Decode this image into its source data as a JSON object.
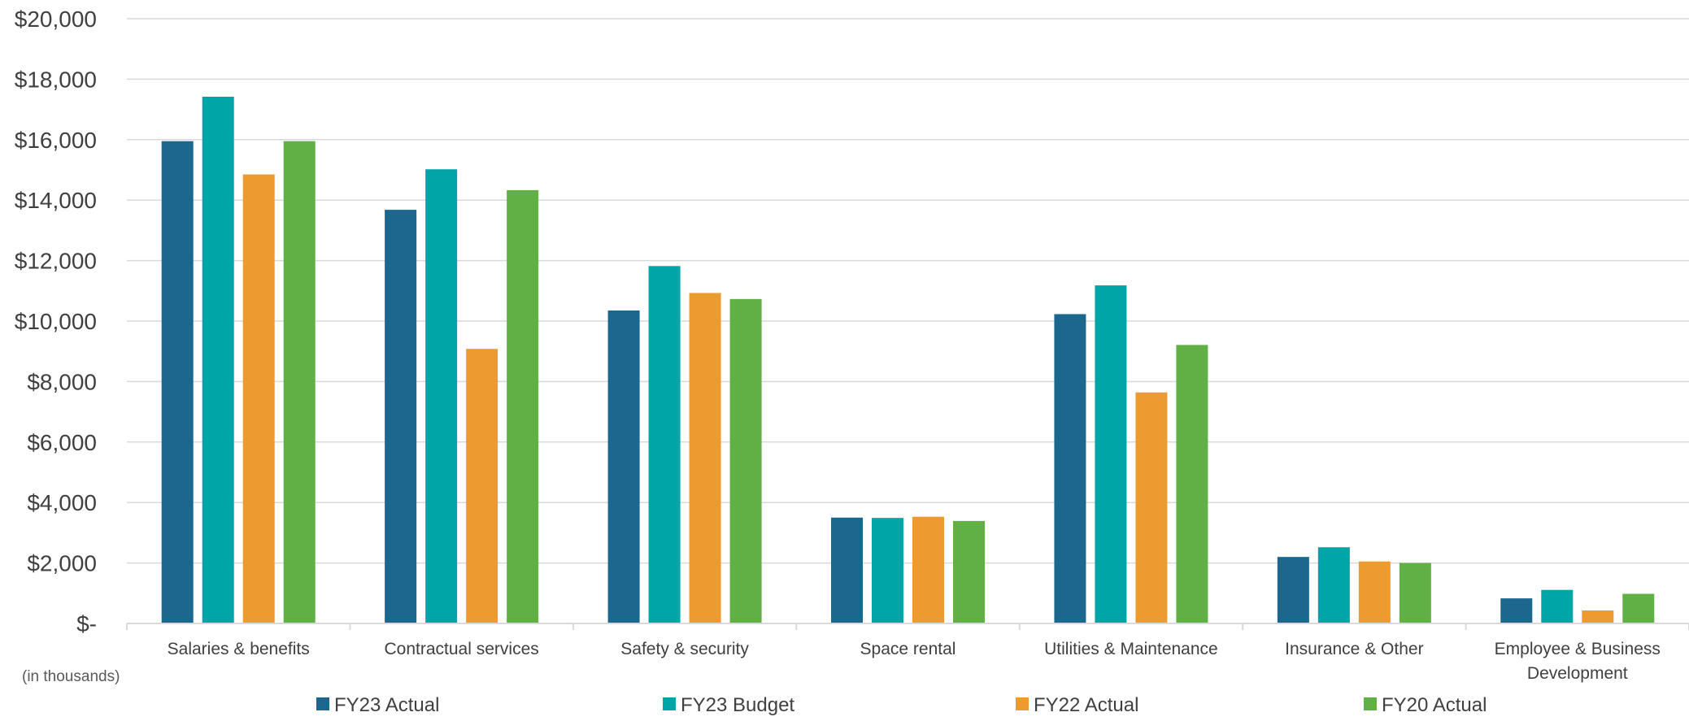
{
  "chart_data": {
    "type": "bar",
    "categories": [
      [
        "Salaries & benefits"
      ],
      [
        "Contractual services"
      ],
      [
        "Safety & security"
      ],
      [
        "Space rental"
      ],
      [
        "Utilities & Maintenance"
      ],
      [
        "Insurance & Other"
      ],
      [
        "Employee & Business",
        "Development"
      ]
    ],
    "series": [
      {
        "name": "FY23 Actual",
        "color": "#1B678E",
        "values": [
          15950,
          13680,
          10350,
          3500,
          10230,
          2200,
          830
        ]
      },
      {
        "name": "FY23 Budget",
        "color": "#00A5A7",
        "values": [
          17420,
          15020,
          11820,
          3490,
          11180,
          2520,
          1110
        ]
      },
      {
        "name": "FY22 Actual",
        "color": "#EC9B31",
        "values": [
          14850,
          9080,
          10930,
          3530,
          7640,
          2050,
          430
        ]
      },
      {
        "name": "FY20 Actual",
        "color": "#61B046",
        "values": [
          15950,
          14330,
          10730,
          3390,
          9210,
          2000,
          980
        ]
      }
    ],
    "ylim": [
      0,
      20000
    ],
    "ytick_values": [
      0,
      2000,
      4000,
      6000,
      8000,
      10000,
      12000,
      14000,
      16000,
      18000,
      20000
    ],
    "ytick_labels": [
      "$-",
      "$2,000",
      "$4,000",
      "$6,000",
      "$8,000",
      "$10,000",
      "$12,000",
      "$14,000",
      "$16,000",
      "$18,000",
      "$20,000"
    ],
    "units_note": "(in thousands)",
    "grid": true,
    "legend_position": "bottom",
    "gridline_color": "#D9D9D9"
  }
}
